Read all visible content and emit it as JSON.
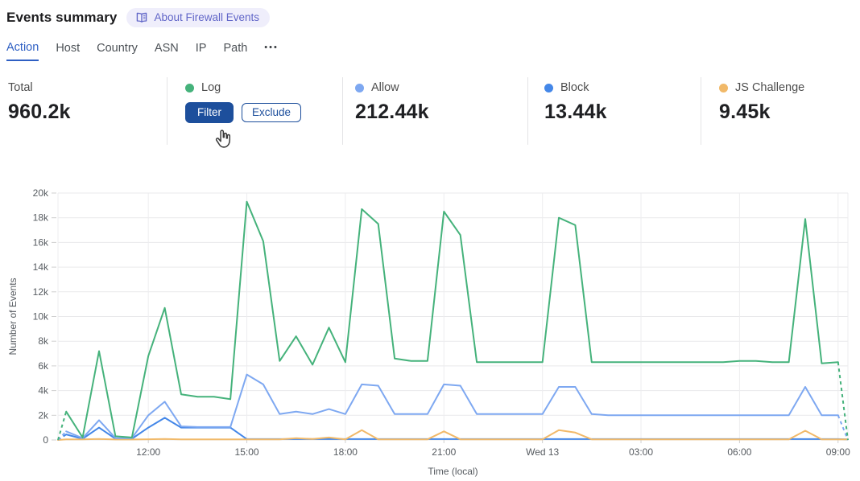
{
  "header": {
    "title": "Events summary",
    "about_badge": {
      "icon": "book-icon",
      "label": "About Firewall Events"
    }
  },
  "tabs": {
    "items": [
      {
        "label": "Action",
        "active": true
      },
      {
        "label": "Host",
        "active": false
      },
      {
        "label": "Country",
        "active": false
      },
      {
        "label": "ASN",
        "active": false
      },
      {
        "label": "IP",
        "active": false
      },
      {
        "label": "Path",
        "active": false
      }
    ],
    "more_label": "•••"
  },
  "stats": {
    "total": {
      "label": "Total",
      "value": "960.2k"
    },
    "log": {
      "label": "Log",
      "dot_color": "#45b27b",
      "filter_label": "Filter",
      "exclude_label": "Exclude"
    },
    "allow": {
      "label": "Allow",
      "value": "212.44k",
      "dot_color": "#7ea8f1"
    },
    "block": {
      "label": "Block",
      "value": "13.44k",
      "dot_color": "#4487e8"
    },
    "js_challenge": {
      "label": "JS Challenge",
      "value": "9.45k",
      "dot_color": "#f1b969"
    }
  },
  "cursor": {
    "icon": "cursor-hand-icon",
    "over": "filter-button"
  },
  "chart_data": {
    "type": "line",
    "xlabel": "Time (local)",
    "ylabel": "Number of Events",
    "ylim": [
      0,
      20000
    ],
    "y_tick_labels": [
      "0",
      "2k",
      "4k",
      "6k",
      "8k",
      "10k",
      "12k",
      "14k",
      "16k",
      "18k",
      "20k"
    ],
    "grid": true,
    "legend_position": "top-stats-row",
    "note": "x_hours are hours after ~09:15 local; values_k are thousands of events; first/last dashed segments indicate partial buckets",
    "x_ticks": [
      {
        "t": 2.75,
        "label": "12:00"
      },
      {
        "t": 5.75,
        "label": "15:00"
      },
      {
        "t": 8.75,
        "label": "18:00"
      },
      {
        "t": 11.75,
        "label": "21:00"
      },
      {
        "t": 14.75,
        "label": "Wed 13"
      },
      {
        "t": 17.75,
        "label": "03:00"
      },
      {
        "t": 20.75,
        "label": "06:00"
      },
      {
        "t": 23.75,
        "label": "09:00"
      }
    ],
    "x_hours": [
      0,
      0.25,
      0.75,
      1.25,
      1.75,
      2.25,
      2.75,
      3.25,
      3.75,
      4.25,
      4.75,
      5.25,
      5.75,
      6.25,
      6.75,
      7.25,
      7.75,
      8.25,
      8.75,
      9.25,
      9.75,
      10.25,
      10.75,
      11.25,
      11.75,
      12.25,
      12.75,
      13.25,
      13.75,
      14.25,
      14.75,
      15.25,
      15.75,
      16.25,
      16.75,
      17.25,
      17.75,
      18.25,
      18.75,
      19.25,
      19.75,
      20.25,
      20.75,
      21.25,
      21.75,
      22.25,
      22.75,
      23.25,
      23.75,
      24.05
    ],
    "series": [
      {
        "name": "Log",
        "color": "#45b27b",
        "dash_start": true,
        "dash_end": true,
        "values_k": [
          0,
          2.3,
          0.2,
          7.2,
          0.3,
          0.2,
          6.8,
          10.7,
          3.7,
          3.5,
          3.5,
          3.3,
          19.3,
          16.1,
          6.4,
          8.4,
          6.1,
          9.1,
          6.3,
          18.7,
          17.5,
          6.6,
          6.4,
          6.4,
          18.5,
          16.6,
          6.3,
          6.3,
          6.3,
          6.3,
          6.3,
          18.0,
          17.4,
          6.3,
          6.3,
          6.3,
          6.3,
          6.3,
          6.3,
          6.3,
          6.3,
          6.3,
          6.4,
          6.4,
          6.3,
          6.3,
          17.9,
          6.2,
          6.3,
          0
        ]
      },
      {
        "name": "Allow",
        "color": "#7ea8f1",
        "dash_start": true,
        "dash_end": true,
        "values_k": [
          0,
          0.7,
          0.15,
          1.6,
          0.15,
          0.15,
          2.0,
          3.1,
          1.1,
          1.05,
          1.05,
          1.05,
          5.3,
          4.5,
          2.1,
          2.3,
          2.1,
          2.5,
          2.1,
          4.5,
          4.4,
          2.1,
          2.1,
          2.1,
          4.5,
          4.4,
          2.1,
          2.1,
          2.1,
          2.1,
          2.1,
          4.3,
          4.3,
          2.1,
          2.0,
          2.0,
          2.0,
          2.0,
          2.0,
          2.0,
          2.0,
          2.0,
          2.0,
          2.0,
          2.0,
          2.0,
          4.3,
          2.0,
          2.0,
          0
        ]
      },
      {
        "name": "Block",
        "color": "#4487e8",
        "dash_start": true,
        "dash_end": false,
        "values_k": [
          0,
          0.45,
          0.1,
          1.0,
          0.1,
          0.1,
          1.0,
          1.8,
          1.0,
          1.0,
          1.0,
          1.0,
          0.07,
          0.07,
          0.07,
          0.07,
          0.07,
          0.07,
          0.07,
          0.07,
          0.07,
          0.07,
          0.07,
          0.07,
          0.07,
          0.07,
          0.07,
          0.07,
          0.07,
          0.07,
          0.07,
          0.07,
          0.07,
          0.07,
          0.07,
          0.07,
          0.07,
          0.07,
          0.07,
          0.07,
          0.07,
          0.07,
          0.07,
          0.07,
          0.07,
          0.07,
          0.07,
          0.07,
          0.07,
          0.05
        ]
      },
      {
        "name": "JS Challenge",
        "color": "#f1b969",
        "dash_start": false,
        "dash_end": false,
        "values_k": [
          0,
          0.05,
          0.05,
          0.08,
          0.04,
          0.04,
          0.06,
          0.08,
          0.05,
          0.05,
          0.05,
          0.05,
          0.05,
          0.05,
          0.05,
          0.15,
          0.08,
          0.2,
          0.05,
          0.8,
          0.05,
          0.05,
          0.05,
          0.05,
          0.7,
          0.05,
          0.05,
          0.05,
          0.05,
          0.05,
          0.05,
          0.8,
          0.6,
          0.05,
          0.05,
          0.05,
          0.05,
          0.05,
          0.05,
          0.05,
          0.05,
          0.05,
          0.05,
          0.05,
          0.05,
          0.05,
          0.75,
          0.05,
          0.05,
          0.05
        ]
      }
    ]
  }
}
